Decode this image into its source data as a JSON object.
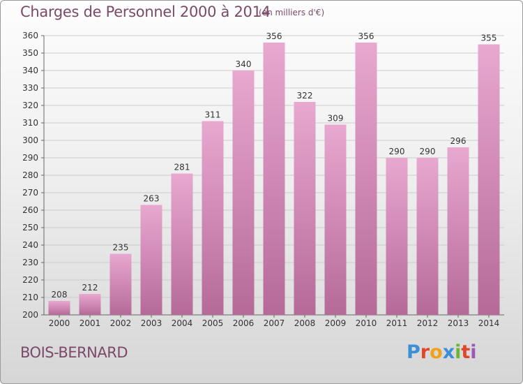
{
  "header": {
    "title": "Charges de Personnel 2000 à 2014",
    "subtitle": "(en milliers d'€)"
  },
  "footer": {
    "place": "BOIS-BERNARD",
    "logo_letters": [
      "P",
      "r",
      "o",
      "x",
      "i",
      "t",
      "i"
    ],
    "logo_colors": [
      "#3a8fd6",
      "#e0462b",
      "#f0a21b",
      "#3a8fd6",
      "#6bb52f",
      "#e0462b",
      "#9b59b6"
    ]
  },
  "colors": {
    "bar_light": "#e8a8d0",
    "bar_dark": "#b56a98",
    "axis_text": "#333333",
    "grid": "#cccccc"
  },
  "chart_data": {
    "type": "bar",
    "categories": [
      "2000",
      "2001",
      "2002",
      "2003",
      "2004",
      "2005",
      "2006",
      "2007",
      "2008",
      "2009",
      "2010",
      "2011",
      "2012",
      "2013",
      "2014"
    ],
    "values": [
      208,
      212,
      235,
      263,
      281,
      311,
      340,
      356,
      322,
      309,
      356,
      290,
      290,
      296,
      355
    ],
    "ylim": [
      200,
      360
    ],
    "yticks": [
      200,
      210,
      220,
      230,
      240,
      250,
      260,
      270,
      280,
      290,
      300,
      310,
      320,
      330,
      340,
      350,
      360
    ],
    "grid": true,
    "data_labels": true
  }
}
